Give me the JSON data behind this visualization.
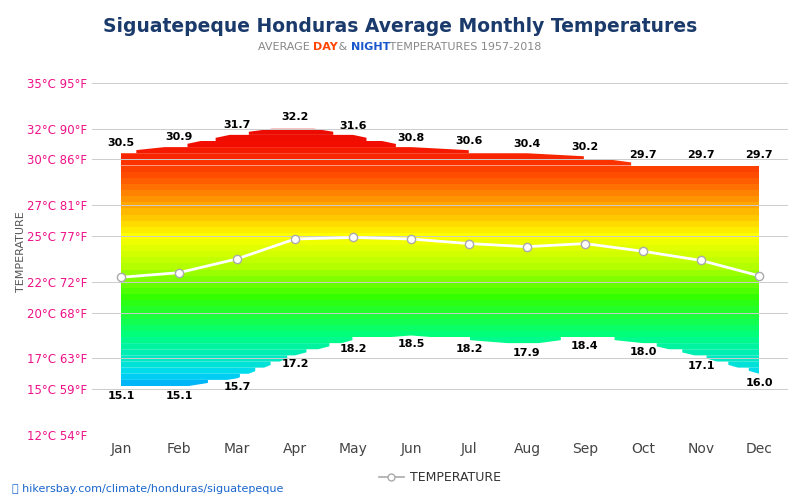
{
  "title": "Siguatepeque Honduras Average Monthly Temperatures",
  "subtitle_parts": [
    "AVERAGE ",
    "DAY",
    " & ",
    "NIGHT",
    " TEMPERATURES 1957-2018"
  ],
  "subtitle_colors": [
    "#888888",
    "#ff4500",
    "#888888",
    "#1a56cc",
    "#888888"
  ],
  "months": [
    "Jan",
    "Feb",
    "Mar",
    "Apr",
    "May",
    "Jun",
    "Jul",
    "Aug",
    "Sep",
    "Oct",
    "Nov",
    "Dec"
  ],
  "day_temps": [
    30.5,
    30.9,
    31.7,
    32.2,
    31.6,
    30.8,
    30.6,
    30.4,
    30.2,
    29.7,
    29.7,
    29.7
  ],
  "night_temps": [
    15.1,
    15.1,
    15.7,
    17.2,
    18.2,
    18.5,
    18.2,
    17.9,
    18.4,
    18.0,
    17.1,
    16.0
  ],
  "avg_temps": [
    22.3,
    22.6,
    23.5,
    24.8,
    24.9,
    24.8,
    24.5,
    24.3,
    24.5,
    24.0,
    23.4,
    22.4
  ],
  "ylim_min": 12,
  "ylim_max": 36,
  "yticks_c": [
    12,
    15,
    17,
    20,
    22,
    25,
    27,
    30,
    32,
    35
  ],
  "yticks_f": [
    54,
    59,
    63,
    68,
    72,
    77,
    81,
    86,
    90,
    95
  ],
  "ylabel": "TEMPERATURE",
  "footer_text": "hikersbay.com/climate/honduras/siguatepeque",
  "legend_label": "TEMPERATURE",
  "background_color": "#ffffff",
  "grid_color": "#cccccc",
  "title_color": "#1a3a6b",
  "yticklabel_color_c": "#ff1493",
  "yticklabel_color_f": "#ff1493"
}
